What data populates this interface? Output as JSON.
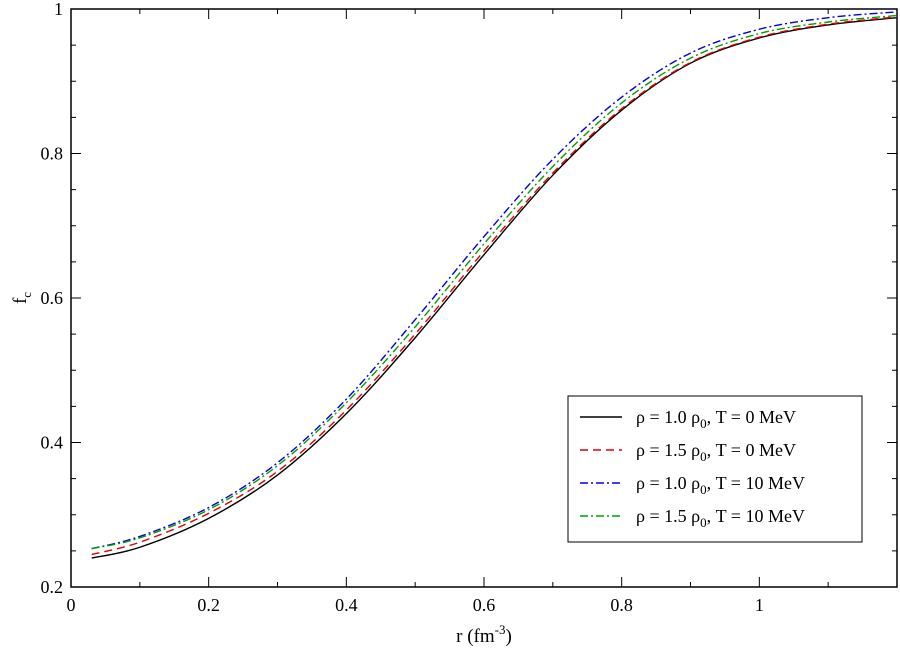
{
  "chart_data": {
    "type": "line",
    "xlabel": "r (fm",
    "xlabel_sup": "-3",
    "xlabel_end": ")",
    "ylabel": "f",
    "ylabel_sub": "c",
    "xlim": [
      0,
      1.2
    ],
    "ylim": [
      0.2,
      1.0
    ],
    "xticks": [
      0,
      0.2,
      0.4,
      0.6,
      0.8,
      1
    ],
    "xtick_labels": [
      "0",
      "0.2",
      "0.4",
      "0.6",
      "0.8",
      "1"
    ],
    "yticks": [
      0.2,
      0.4,
      0.6,
      0.8,
      1.0
    ],
    "ytick_labels": [
      "0.2",
      "0.4",
      "0.6",
      "0.8",
      "1"
    ],
    "grid": false,
    "legend_position": "bottom-right",
    "x": [
      0.03,
      0.1,
      0.2,
      0.3,
      0.4,
      0.5,
      0.6,
      0.7,
      0.8,
      0.9,
      1.0,
      1.1,
      1.2
    ],
    "series": [
      {
        "name_main": "ρ = 1.0 ρ",
        "name_sub": "0",
        "name_tail": ", T =   0 MeV",
        "color": "#000000",
        "dash": "",
        "values": [
          0.24,
          0.255,
          0.295,
          0.355,
          0.44,
          0.545,
          0.66,
          0.77,
          0.86,
          0.925,
          0.96,
          0.978,
          0.988
        ]
      },
      {
        "name_main": "ρ = 1.5 ρ",
        "name_sub": "0",
        "name_tail": ", T =   0 MeV",
        "color": "#e00000",
        "dash": "8,5",
        "values": [
          0.245,
          0.262,
          0.302,
          0.36,
          0.445,
          0.55,
          0.665,
          0.773,
          0.862,
          0.926,
          0.961,
          0.979,
          0.989
        ]
      },
      {
        "name_main": "ρ = 1.0 ρ",
        "name_sub": "0",
        "name_tail": ", T = 10 MeV",
        "color": "#0000e0",
        "dash": "8,3,2,3",
        "values": [
          0.253,
          0.27,
          0.31,
          0.372,
          0.46,
          0.57,
          0.685,
          0.792,
          0.878,
          0.939,
          0.972,
          0.988,
          0.996
        ]
      },
      {
        "name_main": "ρ = 1.5 ρ",
        "name_sub": "0",
        "name_tail": ", T = 10 MeV",
        "color": "#00a000",
        "dash": "8,3,2,3",
        "values": [
          0.253,
          0.268,
          0.307,
          0.368,
          0.455,
          0.56,
          0.675,
          0.782,
          0.87,
          0.932,
          0.966,
          0.982,
          0.991
        ]
      }
    ]
  }
}
